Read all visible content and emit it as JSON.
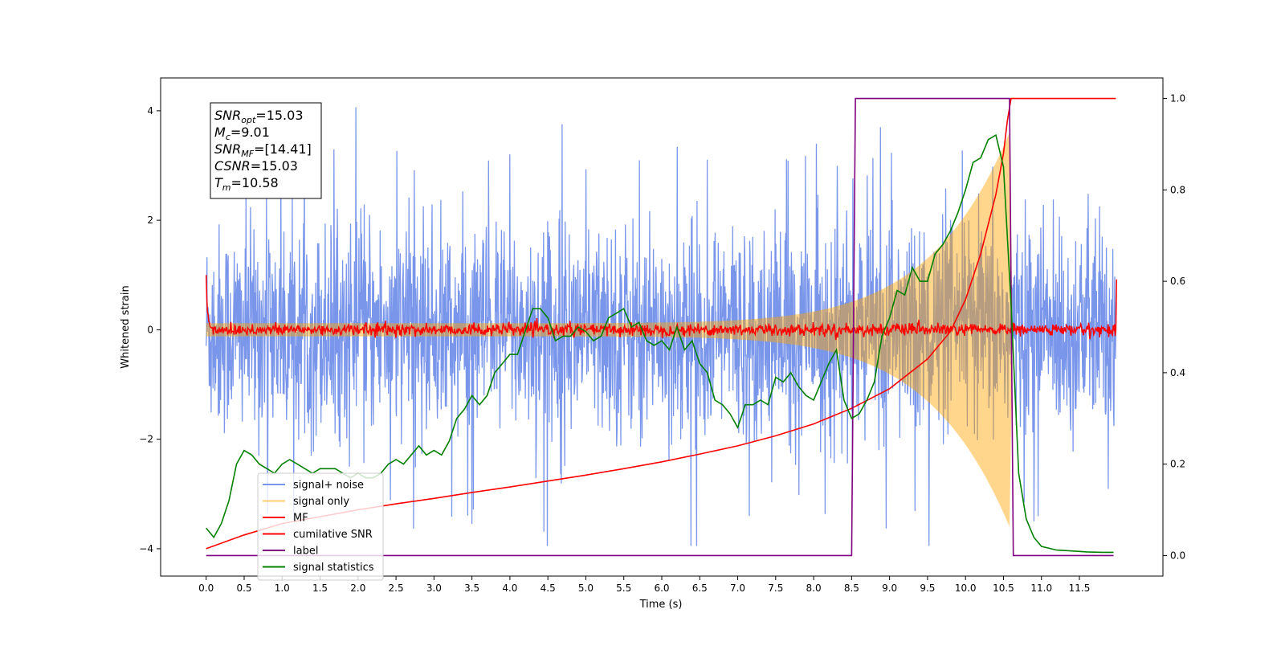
{
  "chart_data": {
    "type": "line",
    "xlabel": "Time (s)",
    "ylabel": "Whitened strain",
    "xlim": [
      -0.6,
      12.6
    ],
    "ylim": [
      -4.5,
      4.6
    ],
    "y2lim": [
      -0.045,
      1.045
    ],
    "xticks": [
      0.0,
      0.5,
      1.0,
      1.5,
      2.0,
      2.5,
      3.0,
      3.5,
      4.0,
      4.5,
      5.0,
      5.5,
      6.0,
      6.5,
      7.0,
      7.5,
      8.0,
      8.5,
      9.0,
      9.5,
      10.0,
      10.5,
      11.0,
      11.5
    ],
    "xtick_labels": [
      "0.0",
      "0.5",
      "1.0",
      "1.5",
      "2.0",
      "2.5",
      "3.0",
      "3.5",
      "4.0",
      "4.5",
      "5.0",
      "5.5",
      "6.0",
      "6.5",
      "7.0",
      "7.5",
      "8.0",
      "8.5",
      "9.0",
      "9.5",
      "10.0",
      "10.5",
      "11.0",
      "11.5"
    ],
    "yticks": [
      -4,
      -2,
      0,
      2,
      4
    ],
    "ytick_labels": [
      "−4",
      "−2",
      "0",
      "2",
      "4"
    ],
    "y2ticks": [
      0.0,
      0.2,
      0.4,
      0.6,
      0.8,
      1.0
    ],
    "y2tick_labels": [
      "0.0",
      "0.2",
      "0.4",
      "0.6",
      "0.8",
      "1.0"
    ],
    "grid": false,
    "legend_position": "lower-left",
    "annotation": {
      "lines": [
        {
          "sym": "SNR",
          "sub": "opt",
          "value": "=15.03"
        },
        {
          "sym": "M",
          "sub": "c",
          "value": "=9.01"
        },
        {
          "sym": "SNR",
          "sub": "MF",
          "value": "=[14.41]"
        },
        {
          "sym": "CSNR",
          "sub": "",
          "value": "=15.03"
        },
        {
          "sym": "T",
          "sub": "m",
          "value": "=10.58"
        }
      ]
    },
    "series": [
      {
        "name": "signal+ noise",
        "color": "#4169e1",
        "axis": "left",
        "kind": "noise",
        "typical_range": [
          -2.6,
          2.7
        ],
        "extremes": [
          -3.95,
          4.2
        ]
      },
      {
        "name": "signal only",
        "color": "#ffa500",
        "axis": "left",
        "kind": "chirp",
        "amplitude_start": 0.12,
        "amplitude_peak": 3.6,
        "t_merge": 10.58,
        "t_end": 10.62
      },
      {
        "name": "MF",
        "color": "#ff0000",
        "axis": "left",
        "kind": "mf",
        "baseline": 0.0,
        "noise_amplitude": 0.1,
        "edge_start": 1.0,
        "edge_end": 0.92
      },
      {
        "name": "cumilative SNR",
        "color": "#ff0000",
        "axis": "right",
        "x": [
          0.0,
          0.5,
          1.0,
          1.5,
          2.0,
          2.5,
          3.0,
          3.5,
          4.0,
          4.5,
          5.0,
          5.5,
          6.0,
          6.5,
          7.0,
          7.5,
          8.0,
          8.5,
          9.0,
          9.5,
          9.8,
          10.0,
          10.2,
          10.4,
          10.5,
          10.55,
          10.58,
          10.6,
          11.0,
          11.5,
          11.98
        ],
        "y": [
          0.015,
          0.045,
          0.07,
          0.085,
          0.1,
          0.113,
          0.125,
          0.138,
          0.15,
          0.163,
          0.176,
          0.19,
          0.205,
          0.222,
          0.24,
          0.262,
          0.288,
          0.322,
          0.365,
          0.43,
          0.49,
          0.56,
          0.66,
          0.79,
          0.88,
          0.95,
          0.98,
          1.0,
          1.0,
          1.0,
          1.0
        ]
      },
      {
        "name": "label",
        "color": "#800080",
        "axis": "right",
        "x": [
          0.0,
          8.5,
          8.55,
          10.58,
          10.63,
          11.95
        ],
        "y": [
          0.0,
          0.0,
          1.0,
          1.0,
          0.0,
          0.0
        ]
      },
      {
        "name": "signal statistics",
        "color": "#008000",
        "axis": "right",
        "x": [
          0.0,
          0.1,
          0.2,
          0.3,
          0.4,
          0.5,
          0.6,
          0.7,
          0.8,
          0.9,
          1.0,
          1.1,
          1.2,
          1.3,
          1.4,
          1.5,
          1.6,
          1.7,
          1.8,
          1.9,
          2.0,
          2.1,
          2.2,
          2.3,
          2.4,
          2.5,
          2.6,
          2.7,
          2.8,
          2.9,
          3.0,
          3.1,
          3.2,
          3.3,
          3.4,
          3.5,
          3.6,
          3.7,
          3.8,
          3.9,
          4.0,
          4.1,
          4.2,
          4.3,
          4.4,
          4.5,
          4.6,
          4.7,
          4.8,
          4.9,
          5.0,
          5.1,
          5.2,
          5.3,
          5.4,
          5.5,
          5.6,
          5.7,
          5.8,
          5.9,
          6.0,
          6.1,
          6.2,
          6.3,
          6.4,
          6.5,
          6.6,
          6.7,
          6.8,
          6.9,
          7.0,
          7.1,
          7.2,
          7.3,
          7.4,
          7.5,
          7.6,
          7.7,
          7.8,
          7.9,
          8.0,
          8.1,
          8.2,
          8.3,
          8.4,
          8.5,
          8.6,
          8.7,
          8.8,
          8.9,
          9.0,
          9.1,
          9.2,
          9.3,
          9.4,
          9.5,
          9.6,
          9.7,
          9.8,
          9.9,
          10.0,
          10.1,
          10.2,
          10.3,
          10.4,
          10.5,
          10.6,
          10.7,
          10.8,
          10.9,
          11.0,
          11.2,
          11.4,
          11.6,
          11.8,
          11.95
        ],
        "y": [
          0.06,
          0.04,
          0.07,
          0.12,
          0.2,
          0.23,
          0.22,
          0.2,
          0.19,
          0.18,
          0.2,
          0.21,
          0.2,
          0.19,
          0.18,
          0.19,
          0.19,
          0.19,
          0.18,
          0.17,
          0.18,
          0.17,
          0.17,
          0.18,
          0.2,
          0.21,
          0.2,
          0.22,
          0.24,
          0.22,
          0.23,
          0.22,
          0.25,
          0.3,
          0.32,
          0.35,
          0.33,
          0.35,
          0.4,
          0.42,
          0.44,
          0.44,
          0.49,
          0.54,
          0.54,
          0.52,
          0.47,
          0.48,
          0.48,
          0.5,
          0.49,
          0.47,
          0.48,
          0.52,
          0.53,
          0.54,
          0.5,
          0.51,
          0.47,
          0.46,
          0.47,
          0.45,
          0.5,
          0.45,
          0.47,
          0.42,
          0.4,
          0.34,
          0.33,
          0.31,
          0.28,
          0.33,
          0.33,
          0.34,
          0.33,
          0.39,
          0.38,
          0.4,
          0.37,
          0.35,
          0.34,
          0.38,
          0.42,
          0.45,
          0.34,
          0.3,
          0.31,
          0.34,
          0.38,
          0.48,
          0.52,
          0.58,
          0.57,
          0.63,
          0.6,
          0.6,
          0.66,
          0.68,
          0.71,
          0.75,
          0.8,
          0.86,
          0.87,
          0.91,
          0.92,
          0.85,
          0.55,
          0.18,
          0.08,
          0.04,
          0.02,
          0.012,
          0.01,
          0.008,
          0.007,
          0.007
        ]
      }
    ]
  }
}
